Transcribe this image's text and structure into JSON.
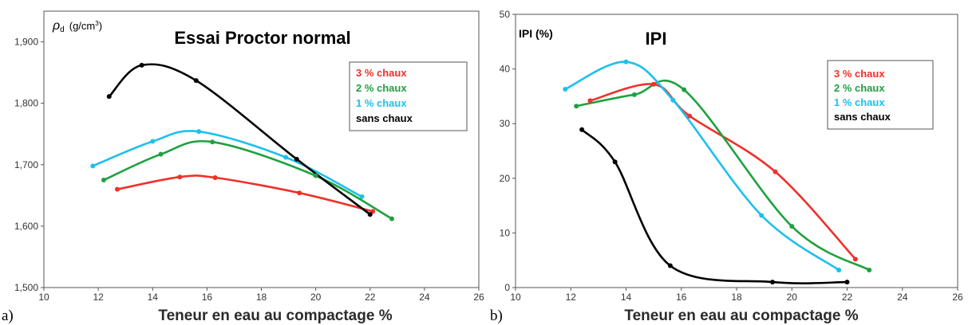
{
  "chart_data": [
    {
      "type": "line",
      "panel_label": "a)",
      "title": "Essai Proctor normal",
      "ylabel": "ρd (g/cm3)",
      "ylabel_symbol": "ρ",
      "ylabel_sub": "d",
      "ylabel_unit_pre": "(g/cm",
      "ylabel_unit_sup": "3",
      "ylabel_unit_post": ")",
      "xlabel": "Teneur en eau au compactage %",
      "xlim": [
        10,
        26
      ],
      "ylim": [
        1500,
        1950
      ],
      "xticks": [
        10,
        12,
        14,
        16,
        18,
        20,
        22,
        24,
        26
      ],
      "yticks": [
        1500,
        1600,
        1700,
        1800,
        1900
      ],
      "ytick_labels": [
        "1,500",
        "1,600",
        "1,700",
        "1,800",
        "1,900"
      ],
      "legend_position": "top-right",
      "series": [
        {
          "name": "3 % chaux",
          "color": "#f0302a",
          "x": [
            12.7,
            15.0,
            16.3,
            19.4,
            22.1
          ],
          "y": [
            1660,
            1680,
            1679,
            1654,
            1624
          ]
        },
        {
          "name": "2 % chaux",
          "color": "#1ea13f",
          "x": [
            12.2,
            14.3,
            16.2,
            20.0,
            22.8
          ],
          "y": [
            1675,
            1717,
            1737,
            1682,
            1612
          ]
        },
        {
          "name": "1 % chaux",
          "color": "#1cc0ec",
          "x": [
            11.8,
            14.0,
            15.7,
            18.9,
            21.7
          ],
          "y": [
            1698,
            1738,
            1754,
            1712,
            1648
          ]
        },
        {
          "name": "sans chaux",
          "color": "#000000",
          "x": [
            12.4,
            13.6,
            15.6,
            19.3,
            22.0
          ],
          "y": [
            1811,
            1862,
            1837,
            1709,
            1619
          ]
        }
      ]
    },
    {
      "type": "line",
      "panel_label": "b)",
      "title": "IPI",
      "ylabel": "IPI (%)",
      "xlabel": "Teneur en eau au compactage %",
      "xlim": [
        10,
        26
      ],
      "ylim": [
        0,
        50
      ],
      "xticks": [
        10,
        12,
        14,
        16,
        18,
        20,
        22,
        24,
        26
      ],
      "yticks": [
        0,
        10,
        20,
        30,
        40,
        50
      ],
      "ytick_labels": [
        "0",
        "10",
        "20",
        "30",
        "40",
        "50"
      ],
      "legend_position": "top-right",
      "series": [
        {
          "name": "3 % chaux",
          "color": "#f0302a",
          "x": [
            12.7,
            15.0,
            16.3,
            19.4,
            22.3
          ],
          "y": [
            34.2,
            37.2,
            31.4,
            21.2,
            5.2
          ]
        },
        {
          "name": "2 % chaux",
          "color": "#1ea13f",
          "x": [
            12.2,
            14.3,
            16.1,
            20.0,
            22.8
          ],
          "y": [
            33.2,
            35.3,
            36.2,
            11.2,
            3.2
          ]
        },
        {
          "name": "1 % chaux",
          "color": "#1cc0ec",
          "x": [
            11.8,
            14.0,
            15.7,
            18.9,
            21.7
          ],
          "y": [
            36.3,
            41.3,
            34.3,
            13.2,
            3.2
          ]
        },
        {
          "name": "sans chaux",
          "color": "#000000",
          "x": [
            12.4,
            13.6,
            15.6,
            19.3,
            22.0
          ],
          "y": [
            28.9,
            23.0,
            4.0,
            1.0,
            1.0
          ]
        }
      ]
    }
  ]
}
